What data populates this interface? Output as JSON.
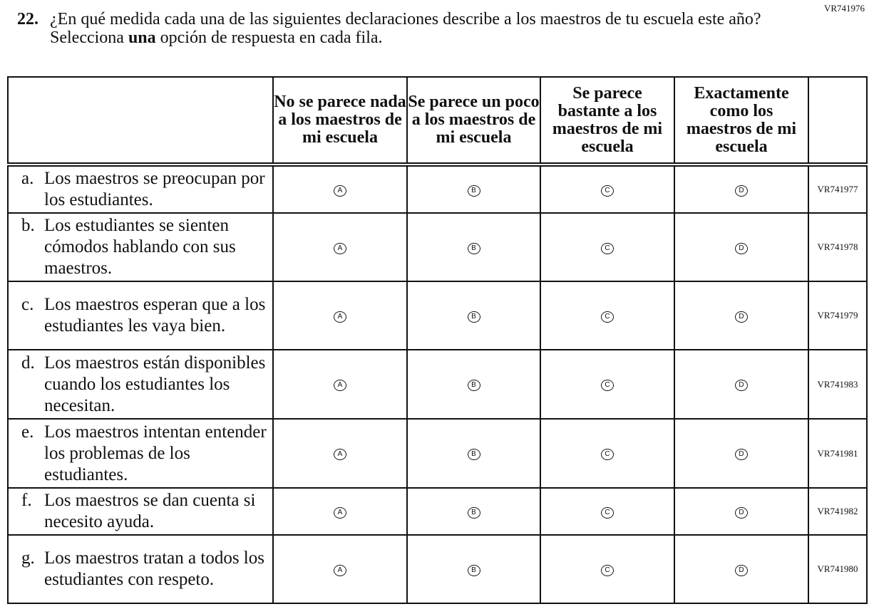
{
  "header": {
    "code": "VR741976",
    "number": "22.",
    "question_parts": [
      "¿En qué medida cada una de las siguientes declaraciones describe a los maestros de tu escuela este año? Selecciona ",
      "una",
      " opción de respuesta en cada fila."
    ]
  },
  "table": {
    "columns": [
      "No se parece nada a los maestros de mi escuela",
      "Se parece un poco a los maestros de mi escuela",
      "Se parece bastante a los maestros de mi escuela",
      "Exactamente como los maestros de mi escuela"
    ],
    "options": [
      "A",
      "B",
      "C",
      "D"
    ],
    "rows": [
      {
        "letter": "a.",
        "text": "Los maestros se preocupan por los estudiantes.",
        "code": "VR741977"
      },
      {
        "letter": "b.",
        "text": "Los estudiantes se sienten cómodos hablando con sus maestros.",
        "code": "VR741978"
      },
      {
        "letter": "c.",
        "text": "Los maestros esperan que a los estudiantes les vaya bien.",
        "code": "VR741979"
      },
      {
        "letter": "d.",
        "text": "Los maestros están disponibles cuando los estudiantes los necesitan.",
        "code": "VR741983"
      },
      {
        "letter": "e.",
        "text": "Los maestros intentan entender los problemas de los estudiantes.",
        "code": "VR741981"
      },
      {
        "letter": "f.",
        "text": "Los maestros se dan cuenta si necesito ayuda.",
        "code": "VR741982"
      },
      {
        "letter": "g.",
        "text": "Los maestros tratan a todos los estudiantes con respeto.",
        "code": "VR741980"
      }
    ]
  }
}
